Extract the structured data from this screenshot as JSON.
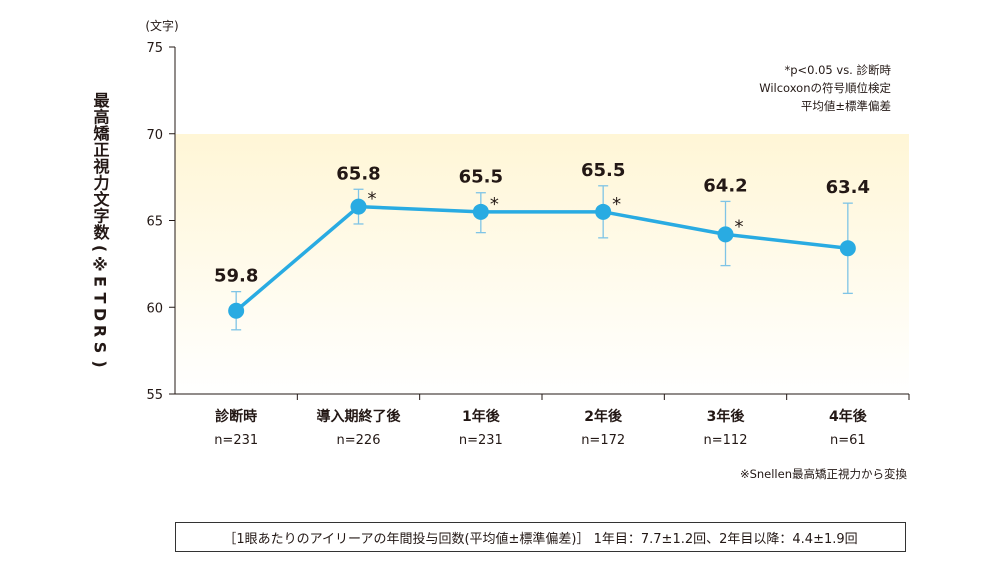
{
  "chart_data": {
    "type": "line",
    "unit_label": "(文字)",
    "ylabel": "最高矯正視力文字数(※ETDRS)",
    "ylim": [
      55,
      75
    ],
    "yticks": [
      "75",
      "70",
      "65",
      "60",
      "55"
    ],
    "categories": [
      "診断時",
      "導入期終了後",
      "1年後",
      "2年後",
      "3年後",
      "4年後"
    ],
    "n_labels": [
      "n=231",
      "n=226",
      "n=231",
      "n=172",
      "n=112",
      "n=61"
    ],
    "values": [
      59.8,
      65.8,
      65.5,
      65.5,
      64.2,
      63.4
    ],
    "value_labels": [
      "59.8",
      "65.8",
      "65.5",
      "65.5",
      "64.2",
      "63.4"
    ],
    "error_low": [
      58.7,
      64.8,
      64.3,
      64.0,
      62.4,
      60.8
    ],
    "error_high": [
      60.9,
      66.8,
      66.6,
      67.0,
      66.1,
      66.0
    ],
    "significant_marks": [
      "",
      "*",
      "*",
      "*",
      "*",
      ""
    ],
    "notes": [
      "*p<0.05 vs. 診断時",
      "Wilcoxonの符号順位検定",
      "平均値±標準偏差"
    ],
    "footnote": "※Snellen最高矯正視力から変換",
    "line_color": "#29abe2",
    "marker_color": "#29abe2",
    "error_bar_color": "#7fc4e6",
    "background_gradient": [
      "#fff6d6",
      "#ffffff"
    ],
    "grid": false
  },
  "footer": {
    "text": "［1眼あたりのアイリーアの年間投与回数(平均値±標準偏差)］ 1年目：7.7±1.2回、2年目以降：4.4±1.9回"
  }
}
